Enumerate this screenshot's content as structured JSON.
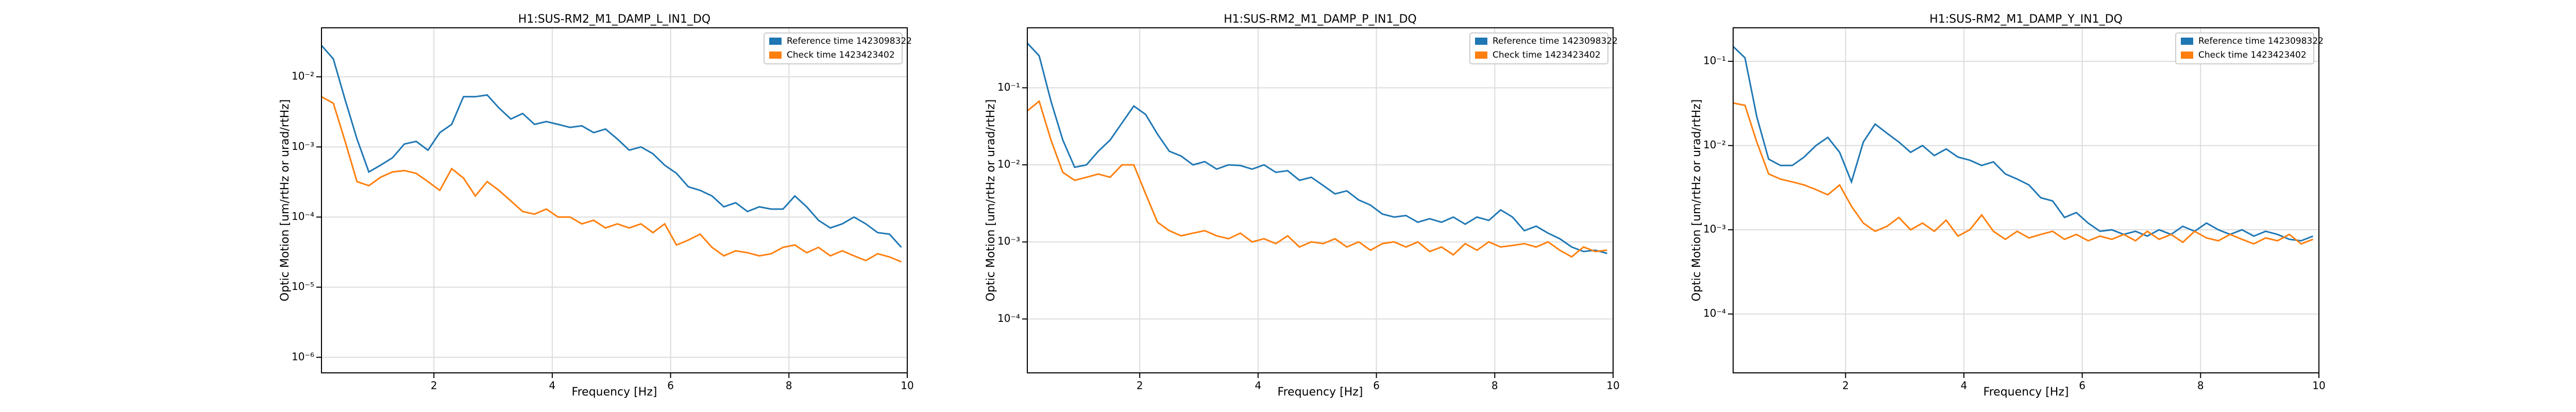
{
  "chart_data": [
    {
      "type": "line",
      "title": "H1:SUS-RM2_M1_DAMP_L_IN1_DQ",
      "xlabel": "Frequency [Hz]",
      "ylabel": "Optic Motion [um/rtHz or urad/rtHz]",
      "log_y": true,
      "grid": true,
      "legend": "upper right",
      "xlim": [
        0.1,
        10
      ],
      "xticks": [
        2,
        4,
        6,
        8,
        10
      ],
      "ylim": [
        6e-07,
        0.05
      ],
      "yticks": [
        {
          "value": 1e-06,
          "label": "10⁻⁶"
        },
        {
          "value": 1e-05,
          "label": "10⁻⁵"
        },
        {
          "value": 0.0001,
          "label": "10⁻⁴"
        },
        {
          "value": 0.001,
          "label": "10⁻³"
        },
        {
          "value": 0.01,
          "label": "10⁻²"
        }
      ],
      "x": [
        0.1,
        0.3,
        0.5,
        0.7,
        0.9,
        1.1,
        1.3,
        1.5,
        1.7,
        1.9,
        2.1,
        2.3,
        2.5,
        2.7,
        2.9,
        3.1,
        3.3,
        3.5,
        3.7,
        3.9,
        4.1,
        4.3,
        4.5,
        4.7,
        4.9,
        5.1,
        5.3,
        5.5,
        5.7,
        5.9,
        6.1,
        6.3,
        6.5,
        6.7,
        6.9,
        7.1,
        7.3,
        7.5,
        7.7,
        7.9,
        8.1,
        8.3,
        8.5,
        8.7,
        8.9,
        9.1,
        9.3,
        9.5,
        9.7,
        9.9
      ],
      "series": [
        {
          "name": "Reference time 1423098322",
          "color": "#1f77b4",
          "values": [
            0.028,
            0.018,
            0.0047,
            0.0013,
            0.00044,
            0.00055,
            0.0007,
            0.0011,
            0.0012,
            0.0009,
            0.0016,
            0.0021,
            0.0052,
            0.0052,
            0.0055,
            0.0036,
            0.0025,
            0.003,
            0.0021,
            0.0023,
            0.0021,
            0.0019,
            0.002,
            0.0016,
            0.0018,
            0.0013,
            0.0009,
            0.001,
            0.0008,
            0.00055,
            0.00042,
            0.00027,
            0.00024,
            0.0002,
            0.00014,
            0.00016,
            0.00012,
            0.00014,
            0.00013,
            0.00013,
            0.0002,
            0.00014,
            9e-05,
            7e-05,
            8e-05,
            0.0001,
            8e-05,
            6e-05,
            5.7e-05,
            3.7e-05
          ]
        },
        {
          "name": "Check time 1423423402",
          "color": "#ff7f0e",
          "values": [
            0.0052,
            0.0042,
            0.0012,
            0.00032,
            0.00028,
            0.00037,
            0.00044,
            0.00046,
            0.00042,
            0.00032,
            0.00024,
            0.00049,
            0.00036,
            0.0002,
            0.00032,
            0.00024,
            0.00017,
            0.00012,
            0.00011,
            0.00013,
            0.0001,
            0.0001,
            8e-05,
            9e-05,
            7e-05,
            8e-05,
            7e-05,
            8e-05,
            6e-05,
            8e-05,
            4e-05,
            4.7e-05,
            5.7e-05,
            3.7e-05,
            2.8e-05,
            3.3e-05,
            3.1e-05,
            2.8e-05,
            3e-05,
            3.7e-05,
            4e-05,
            3.1e-05,
            3.7e-05,
            2.8e-05,
            3.3e-05,
            2.8e-05,
            2.4e-05,
            3e-05,
            2.7e-05,
            2.3e-05
          ]
        }
      ]
    },
    {
      "type": "line",
      "title": "H1:SUS-RM2_M1_DAMP_P_IN1_DQ",
      "xlabel": "Frequency [Hz]",
      "ylabel": "Optic Motion [um/rtHz or urad/rtHz]",
      "log_y": true,
      "grid": true,
      "legend": "upper right",
      "xlim": [
        0.1,
        10
      ],
      "xticks": [
        2,
        4,
        6,
        8,
        10
      ],
      "ylim": [
        2e-05,
        0.6
      ],
      "yticks": [
        {
          "value": 0.0001,
          "label": "10⁻⁴"
        },
        {
          "value": 0.001,
          "label": "10⁻³"
        },
        {
          "value": 0.01,
          "label": "10⁻²"
        },
        {
          "value": 0.1,
          "label": "10⁻¹"
        }
      ],
      "x": [
        0.1,
        0.3,
        0.5,
        0.7,
        0.9,
        1.1,
        1.3,
        1.5,
        1.7,
        1.9,
        2.1,
        2.3,
        2.5,
        2.7,
        2.9,
        3.1,
        3.3,
        3.5,
        3.7,
        3.9,
        4.1,
        4.3,
        4.5,
        4.7,
        4.9,
        5.1,
        5.3,
        5.5,
        5.7,
        5.9,
        6.1,
        6.3,
        6.5,
        6.7,
        6.9,
        7.1,
        7.3,
        7.5,
        7.7,
        7.9,
        8.1,
        8.3,
        8.5,
        8.7,
        8.9,
        9.1,
        9.3,
        9.5,
        9.7,
        9.9
      ],
      "series": [
        {
          "name": "Reference time 1423098322",
          "color": "#1f77b4",
          "values": [
            0.38,
            0.26,
            0.067,
            0.021,
            0.0093,
            0.01,
            0.015,
            0.021,
            0.035,
            0.058,
            0.045,
            0.025,
            0.015,
            0.013,
            0.01,
            0.011,
            0.0088,
            0.01,
            0.0098,
            0.0088,
            0.01,
            0.008,
            0.0084,
            0.0063,
            0.0069,
            0.0054,
            0.0042,
            0.0046,
            0.0035,
            0.003,
            0.0023,
            0.0021,
            0.0022,
            0.0018,
            0.002,
            0.0018,
            0.0021,
            0.0017,
            0.0021,
            0.0019,
            0.0026,
            0.0021,
            0.0014,
            0.0016,
            0.0013,
            0.0011,
            0.00086,
            0.00075,
            0.00078,
            0.00071
          ]
        },
        {
          "name": "Check time 1423423402",
          "color": "#ff7f0e",
          "values": [
            0.05,
            0.067,
            0.021,
            0.008,
            0.0063,
            0.0069,
            0.0076,
            0.0069,
            0.01,
            0.01,
            0.0042,
            0.0018,
            0.0014,
            0.0012,
            0.0013,
            0.0014,
            0.0012,
            0.0011,
            0.0013,
            0.001,
            0.0011,
            0.00095,
            0.0012,
            0.00086,
            0.001,
            0.00095,
            0.0011,
            0.00086,
            0.001,
            0.00078,
            0.00095,
            0.001,
            0.00086,
            0.001,
            0.00075,
            0.00086,
            0.00068,
            0.00095,
            0.00078,
            0.001,
            0.00086,
            0.0009,
            0.00095,
            0.00086,
            0.001,
            0.00078,
            0.00064,
            0.00086,
            0.00075,
            0.00078
          ]
        }
      ]
    },
    {
      "type": "line",
      "title": "H1:SUS-RM2_M1_DAMP_Y_IN1_DQ",
      "xlabel": "Frequency [Hz]",
      "ylabel": "Optic Motion [um/rtHz or urad/rtHz]",
      "log_y": true,
      "grid": true,
      "legend": "upper right",
      "xlim": [
        0.1,
        10
      ],
      "xticks": [
        2,
        4,
        6,
        8,
        10
      ],
      "ylim": [
        2e-05,
        0.25
      ],
      "yticks": [
        {
          "value": 0.0001,
          "label": "10⁻⁴"
        },
        {
          "value": 0.001,
          "label": "10⁻³"
        },
        {
          "value": 0.01,
          "label": "10⁻²"
        },
        {
          "value": 0.1,
          "label": "10⁻¹"
        }
      ],
      "x": [
        0.1,
        0.3,
        0.5,
        0.7,
        0.9,
        1.1,
        1.3,
        1.5,
        1.7,
        1.9,
        2.1,
        2.3,
        2.5,
        2.7,
        2.9,
        3.1,
        3.3,
        3.5,
        3.7,
        3.9,
        4.1,
        4.3,
        4.5,
        4.7,
        4.9,
        5.1,
        5.3,
        5.5,
        5.7,
        5.9,
        6.1,
        6.3,
        6.5,
        6.7,
        6.9,
        7.1,
        7.3,
        7.5,
        7.7,
        7.9,
        8.1,
        8.3,
        8.5,
        8.7,
        8.9,
        9.1,
        9.3,
        9.5,
        9.7,
        9.9
      ],
      "series": [
        {
          "name": "Reference time 1423098322",
          "color": "#1f77b4",
          "values": [
            0.15,
            0.11,
            0.022,
            0.0069,
            0.0058,
            0.0058,
            0.0073,
            0.01,
            0.0125,
            0.0083,
            0.0037,
            0.011,
            0.018,
            0.014,
            0.011,
            0.0083,
            0.01,
            0.0076,
            0.0091,
            0.0073,
            0.0067,
            0.0058,
            0.0064,
            0.0046,
            0.004,
            0.0034,
            0.0024,
            0.0022,
            0.0014,
            0.0016,
            0.0012,
            0.00096,
            0.001,
            0.00088,
            0.00096,
            0.00084,
            0.001,
            0.00088,
            0.0011,
            0.00096,
            0.0012,
            0.001,
            0.00088,
            0.001,
            0.00084,
            0.00096,
            0.00088,
            0.00077,
            0.00074,
            0.00084
          ]
        },
        {
          "name": "Check time 1423423402",
          "color": "#ff7f0e",
          "values": [
            0.032,
            0.03,
            0.011,
            0.0046,
            0.004,
            0.0037,
            0.0034,
            0.003,
            0.0026,
            0.0034,
            0.0019,
            0.0012,
            0.00096,
            0.0011,
            0.0014,
            0.001,
            0.0012,
            0.00096,
            0.0013,
            0.00084,
            0.001,
            0.0015,
            0.00096,
            0.00077,
            0.00096,
            0.0008,
            0.00088,
            0.00096,
            0.00077,
            0.00088,
            0.00074,
            0.00084,
            0.00077,
            0.00088,
            0.00074,
            0.00096,
            0.00077,
            0.00088,
            0.00071,
            0.00096,
            0.0008,
            0.00074,
            0.00088,
            0.00077,
            0.00068,
            0.0008,
            0.00074,
            0.00088,
            0.00068,
            0.00077
          ]
        }
      ]
    }
  ]
}
